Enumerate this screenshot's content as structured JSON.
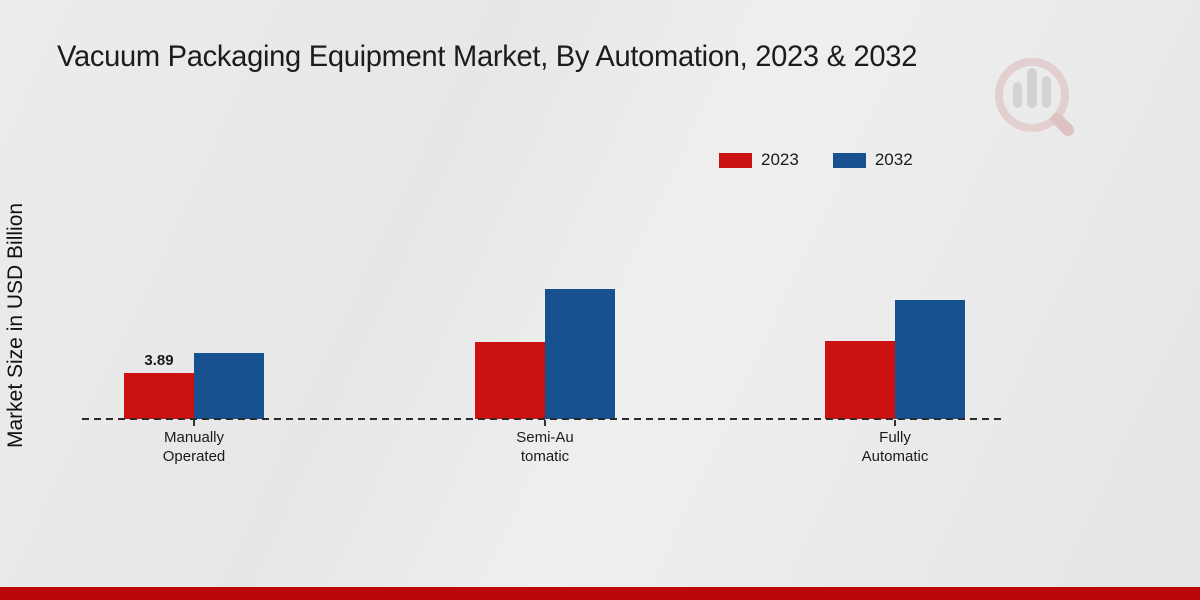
{
  "title": "Vacuum Packaging Equipment Market, By Automation, 2023 & 2032",
  "y_axis_label": "Market Size in USD Billion",
  "legend": {
    "items": [
      {
        "label": "2023",
        "color": "#cc1111"
      },
      {
        "label": "2032",
        "color": "#17518f"
      }
    ]
  },
  "colors": {
    "series_2023": "#cc1111",
    "series_2032": "#17518f",
    "footer_bar": "#bb0707",
    "axis": "#2a2a2a",
    "text": "#1c1c1c"
  },
  "icons": {
    "watermark": "bar-chart-magnifier-logo"
  },
  "chart_data": {
    "type": "bar",
    "title": "Vacuum Packaging Equipment Market, By Automation, 2023 & 2032",
    "xlabel": "",
    "ylabel": "Market Size in USD Billion",
    "categories": [
      "Manually\nOperated",
      "Semi-Au\ntomatic",
      "Fully\nAutomatic"
    ],
    "series": [
      {
        "name": "2023",
        "color": "#cc1111",
        "values": [
          3.89,
          6.5,
          6.6
        ]
      },
      {
        "name": "2032",
        "color": "#17518f",
        "values": [
          5.6,
          11.0,
          10.1
        ]
      }
    ],
    "data_labels": [
      {
        "series": "2023",
        "category_index": 0,
        "text": "3.89"
      }
    ],
    "ylim": [
      0,
      11.5
    ],
    "grid": false,
    "legend_position": "top-right",
    "baseline_dashed": true
  }
}
